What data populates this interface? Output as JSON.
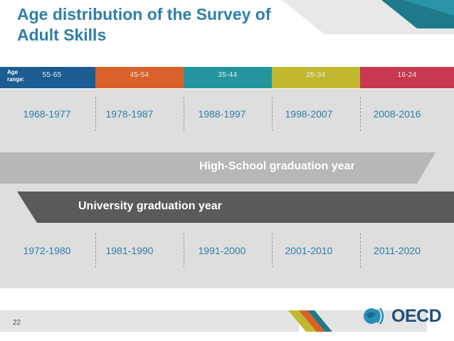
{
  "slide": {
    "title": "Age distribution of the Survey of Adult Skills",
    "page_number": "22"
  },
  "age_bar": {
    "label": "Age range:",
    "segments": [
      {
        "range": "55-65",
        "color": "#1b5d92"
      },
      {
        "range": "45-54",
        "color": "#d8622a"
      },
      {
        "range": "35-44",
        "color": "#24959e"
      },
      {
        "range": "25-34",
        "color": "#c1b831"
      },
      {
        "range": "16-24",
        "color": "#c7394f"
      }
    ]
  },
  "high_school": {
    "band_label": "High-School graduation year",
    "band_color": "#b7b7b7",
    "years": [
      "1968-1977",
      "1978-1987",
      "1988-1997",
      "1998-2007",
      "2008-2016"
    ]
  },
  "university": {
    "band_label": "University graduation year",
    "band_color": "#5a5a5a",
    "years": [
      "1972-1980",
      "1981-1990",
      "1991-2000",
      "2001-2010",
      "2011-2020"
    ]
  },
  "logo": {
    "text": "OECD",
    "icon": "oecd-globe-icon"
  },
  "colors": {
    "title": "#2e7fa8",
    "year_text": "#2f7fa9",
    "panel": "#dedede"
  }
}
